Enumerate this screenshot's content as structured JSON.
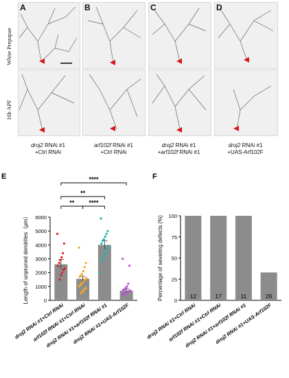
{
  "panels": {
    "letters": [
      "A",
      "B",
      "C",
      "D"
    ],
    "row_labels": [
      "White Prepupae",
      "16h APF"
    ],
    "captions": [
      {
        "line1_italic": "droj2",
        "line1_rest": " RNAi #1",
        "line2_italic": "",
        "line2_rest": "+Ctrl RNAi"
      },
      {
        "line1_italic": "arf102f",
        "line1_rest": " RNAi #1",
        "line2_italic": "",
        "line2_rest": "+Ctrl RNAi"
      },
      {
        "line1_italic": "droj2",
        "line1_rest": " RNAi #1",
        "line2_italic": "arf102f",
        "line2_rest": " RNAi #1"
      },
      {
        "line1_italic": "droj2",
        "line1_rest": " RNAi #1",
        "line2_italic": "",
        "line2_rest": "+UAS-Arf102F"
      }
    ]
  },
  "colors": {
    "bar_gray": "#8c8c8c",
    "marker_red": "#d9141b",
    "e_series": [
      "#e21b1b",
      "#f5a623",
      "#19b3b3",
      "#c04bd6"
    ]
  },
  "chart_data": [
    {
      "type": "bar",
      "panel": "E",
      "ylabel": "Length of unpruned dendrites（μm）",
      "ylim": [
        0,
        6000
      ],
      "yticks": [
        0,
        1000,
        2000,
        3000,
        4000,
        5000,
        6000
      ],
      "categories": [
        "droj2 RNAi #1+Ctrl RNAi",
        "arf102f RNAi #1+Ctrl RNAi",
        "droj2 RNAi #1+arf102f RNAi #1",
        "droj2 RNAi #1+UAS-Arf102F"
      ],
      "values": [
        2600,
        1550,
        4000,
        700
      ],
      "errors": [
        350,
        180,
        300,
        120
      ],
      "points": [
        [
          4800,
          4100,
          3400,
          3100,
          2900,
          2700,
          2500,
          2300,
          2200,
          2000,
          1800,
          1500
        ],
        [
          3800,
          2700,
          2400,
          2100,
          1900,
          1800,
          1700,
          1600,
          1500,
          1450,
          1300,
          1200,
          1100,
          1000,
          900,
          800,
          700,
          600,
          500
        ],
        [
          5900,
          5000,
          4800,
          4600,
          4400,
          4300,
          4100,
          3900,
          3700,
          3500,
          3300,
          3100,
          2900,
          2000
        ],
        [
          3000,
          2500,
          1200,
          1000,
          900,
          800,
          750,
          700,
          650,
          600,
          550,
          500,
          450,
          400
        ]
      ],
      "significance": [
        {
          "from": 0,
          "to": 3,
          "label": "****"
        },
        {
          "from": 0,
          "to": 2,
          "label": "**"
        },
        {
          "from": 0,
          "to": 1,
          "label": "**"
        },
        {
          "from": 1,
          "to": 2,
          "label": "****"
        }
      ]
    },
    {
      "type": "bar",
      "panel": "F",
      "ylabel": "Percentage of severing defects (%)",
      "ylim": [
        0,
        100
      ],
      "yticks": [
        0,
        25,
        50,
        75,
        100
      ],
      "categories": [
        "droj2 RNAi #1+Ctrl RNAi",
        "arf102f RNAi #1+Ctrl RNAi",
        "droj2 RNAi #1+arf102f RNAi #1",
        "droj2 RNAi #1+UAS-Arf102F"
      ],
      "values": [
        100,
        100,
        100,
        33
      ],
      "counts": [
        "12",
        "17",
        "11",
        "26"
      ]
    }
  ]
}
